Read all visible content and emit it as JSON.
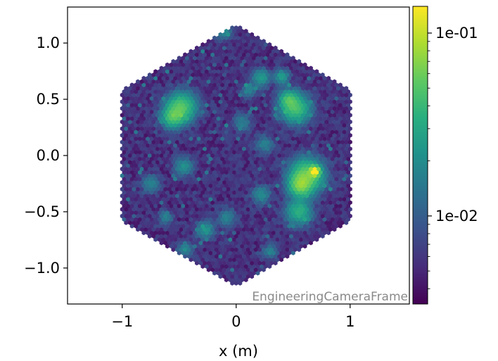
{
  "chart_data": {
    "type": "heatmap",
    "subtype": "hexagonal camera image",
    "xlabel": "x  (m)",
    "ylabel": "",
    "xlim": [
      -1.48,
      1.52
    ],
    "ylim": [
      -1.32,
      1.32
    ],
    "x_ticks": [
      -1,
      0,
      1
    ],
    "x_tick_labels": [
      "−1",
      "0",
      "1"
    ],
    "y_ticks": [
      1.0,
      0.5,
      0.0,
      -0.5,
      -1.0
    ],
    "y_tick_labels": [
      "1.0",
      "0.5",
      "0.0",
      "−0.5",
      "−1.0"
    ],
    "frame_annotation": "EngineeringCameraFrame",
    "colormap": "viridis",
    "color_scale": "log",
    "color_range": [
      0.0033,
      0.14
    ],
    "colorbar_ticks": [
      0.01,
      0.1
    ],
    "colorbar_tick_labels": [
      "1e-02",
      "1e-01"
    ],
    "camera_radius_m": 1.17,
    "baseline_level": 0.0055,
    "hotspots": [
      {
        "x": 0.69,
        "y": -0.14,
        "value": 0.14,
        "sigma": 0.025
      },
      {
        "x": 0.62,
        "y": -0.18,
        "value": 0.055,
        "sigma": 0.09
      },
      {
        "x": 0.56,
        "y": -0.27,
        "value": 0.045,
        "sigma": 0.06
      },
      {
        "x": -0.48,
        "y": 0.43,
        "value": 0.045,
        "sigma": 0.08
      },
      {
        "x": -0.56,
        "y": 0.34,
        "value": 0.035,
        "sigma": 0.06
      },
      {
        "x": 0.52,
        "y": 0.42,
        "value": 0.04,
        "sigma": 0.08
      },
      {
        "x": 0.46,
        "y": 0.5,
        "value": 0.03,
        "sigma": 0.05
      },
      {
        "x": 0.55,
        "y": -0.5,
        "value": 0.03,
        "sigma": 0.07
      },
      {
        "x": 0.4,
        "y": 0.7,
        "value": 0.022,
        "sigma": 0.04
      },
      {
        "x": 0.22,
        "y": 0.69,
        "value": 0.02,
        "sigma": 0.05
      },
      {
        "x": -0.12,
        "y": 1.12,
        "value": 0.016,
        "sigma": 0.05
      },
      {
        "x": -0.46,
        "y": -0.1,
        "value": 0.016,
        "sigma": 0.05
      },
      {
        "x": -0.27,
        "y": -0.66,
        "value": 0.018,
        "sigma": 0.05
      },
      {
        "x": 0.22,
        "y": -0.35,
        "value": 0.015,
        "sigma": 0.05
      },
      {
        "x": 0.11,
        "y": 0.58,
        "value": 0.013,
        "sigma": 0.04
      },
      {
        "x": -0.45,
        "y": -0.83,
        "value": 0.014,
        "sigma": 0.04
      },
      {
        "x": -0.75,
        "y": -0.25,
        "value": 0.012,
        "sigma": 0.05
      },
      {
        "x": 0.25,
        "y": 0.1,
        "value": 0.012,
        "sigma": 0.05
      },
      {
        "x": -0.08,
        "y": -0.55,
        "value": 0.012,
        "sigma": 0.05
      },
      {
        "x": 0.3,
        "y": -0.85,
        "value": 0.013,
        "sigma": 0.04
      },
      {
        "x": -0.62,
        "y": -0.55,
        "value": 0.011,
        "sigma": 0.04
      },
      {
        "x": 0.05,
        "y": 0.3,
        "value": 0.011,
        "sigma": 0.05
      }
    ]
  }
}
